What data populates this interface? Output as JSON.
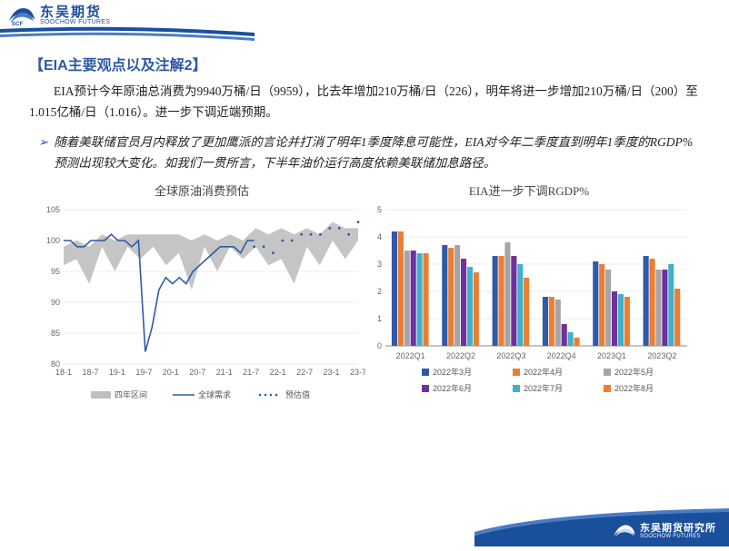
{
  "branding": {
    "company_cn": "东吴期货",
    "company_en": "SOOCHOW FUTURES",
    "footer_cn": "东吴期货研究所",
    "footer_en": "SOOCHOW FUTURES",
    "brand_blue": "#1a4f9c"
  },
  "section_title": "【EIA主要观点以及注解2】",
  "paragraph": "EIA预计今年原油总消费为9940万桶/日（9959），比去年增加210万桶/日（226），明年将进一步增加210万桶/日（200）至1.015亿桶/日（1.016）。进一步下调近端预期。",
  "bullet": "随着美联储官员月内释放了更加鹰派的言论并打消了明年1季度降息可能性，EIA对今年二季度直到明年1季度的RGDP%预测出现较大变化。如我们一贯所言，下半年油价运行高度依赖美联储加息路径。",
  "chart1": {
    "title": "全球原油消费预估",
    "y_min": 80,
    "y_max": 105,
    "y_ticks": [
      80,
      85,
      90,
      95,
      100,
      105
    ],
    "x_labels": [
      "18-1",
      "18-7",
      "19-1",
      "19-7",
      "20-1",
      "20-7",
      "21-1",
      "21-7",
      "22-1",
      "22-7",
      "23-1",
      "23-7"
    ],
    "area_upper": [
      99,
      100,
      99,
      101,
      100,
      101,
      101,
      101,
      101,
      101,
      100,
      101,
      100,
      101,
      100,
      102,
      101,
      102,
      101,
      102,
      101,
      103,
      102,
      102
    ],
    "area_lower": [
      96,
      97,
      93,
      99,
      95,
      99,
      97,
      99,
      96,
      98,
      92,
      99,
      95,
      99,
      97,
      99,
      96,
      97,
      93,
      99,
      96,
      100,
      97,
      100
    ],
    "demand": [
      100,
      100,
      99,
      99,
      100,
      100,
      100,
      101,
      100,
      100,
      99,
      100,
      82,
      86,
      92,
      94,
      93,
      94,
      93,
      95,
      96,
      97,
      98,
      99,
      99,
      99,
      98,
      100,
      100
    ],
    "forecast_start_index": 22,
    "forecast": [
      99,
      99,
      98,
      100,
      100,
      101,
      101,
      101,
      102,
      102,
      101,
      103
    ],
    "legend": {
      "range": "四年区间",
      "demand": "全球需求",
      "forecast": "预估值"
    },
    "colors": {
      "area": "#bfbfbf",
      "line": "#2e5aa8",
      "forecast": "#2e5aa8",
      "grid": "#d9d9d9",
      "text": "#666666",
      "bg": "#ffffff"
    },
    "line_width": 1.6,
    "font_size": 9
  },
  "chart2": {
    "title": "EIA进一步下调RGDP%",
    "y_min": 0,
    "y_max": 5,
    "y_ticks": [
      0,
      1,
      2,
      3,
      4,
      5
    ],
    "categories": [
      "2022Q1",
      "2022Q2",
      "2022Q3",
      "2022Q4",
      "2023Q1",
      "2023Q2"
    ],
    "series": [
      {
        "label": "2022年3月",
        "color": "#2e5aa8",
        "values": [
          4.2,
          3.7,
          3.3,
          1.8,
          3.1,
          3.3
        ]
      },
      {
        "label": "2022年4月",
        "color": "#ed7d31",
        "values": [
          4.2,
          3.6,
          3.3,
          1.8,
          3.0,
          3.2
        ]
      },
      {
        "label": "2022年5月",
        "color": "#a5a5a5",
        "values": [
          3.5,
          3.7,
          3.8,
          1.7,
          2.8,
          2.8
        ]
      },
      {
        "label": "2022年6月",
        "color": "#7030a0",
        "values": [
          3.5,
          3.2,
          3.3,
          0.8,
          2.0,
          2.8
        ]
      },
      {
        "label": "2022年7月",
        "color": "#3fb1c9",
        "values": [
          3.4,
          2.9,
          3.0,
          0.5,
          1.9,
          3.0
        ]
      },
      {
        "label": "2022年8月",
        "color": "#ed7d31",
        "values": [
          3.4,
          2.7,
          2.5,
          0.3,
          1.8,
          2.1
        ]
      }
    ],
    "colors": {
      "grid": "#d9d9d9",
      "text": "#666666",
      "axis": "#888888"
    },
    "bar_gap": 0.02,
    "group_gap": 0.25,
    "font_size": 9
  }
}
